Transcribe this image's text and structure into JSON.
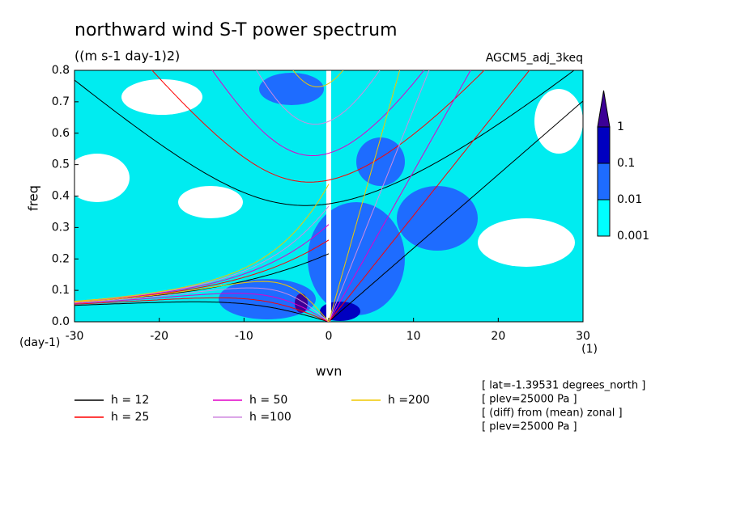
{
  "chart_data": {
    "type": "contour",
    "title": "northward wind S-T power spectrum",
    "subtitle": "((m s-1 day-1)2)",
    "label_right": "AGCM5_adj_3keq",
    "xlabel": "wvn",
    "ylabel": "freq",
    "x_unit": "(1)",
    "y_unit": "(day-1)",
    "xlim": [
      -30,
      30
    ],
    "ylim": [
      0,
      0.8
    ],
    "xticks": [
      -30,
      -20,
      -10,
      0,
      10,
      20,
      30
    ],
    "yticks": [
      {
        "value": 0,
        "label": "0.0"
      },
      0.1,
      0.2,
      0.3,
      0.4,
      0.5,
      0.6,
      0.7,
      0.8
    ],
    "colorbar": {
      "levels": [
        0.001,
        0.01,
        0.1,
        1
      ],
      "colors": [
        "#00ffff",
        "#1e6cff",
        "#0000c0",
        "#3c0096"
      ]
    },
    "series": [
      {
        "name": "h = 12",
        "h": 12,
        "color": "#000000"
      },
      {
        "name": "h = 25",
        "h": 25,
        "color": "#ff0000"
      },
      {
        "name": "h = 50",
        "h": 50,
        "color": "#e000c8"
      },
      {
        "name": "h =100",
        "h": 100,
        "color": "#d08ae0"
      },
      {
        "name": "h =200",
        "h": 200,
        "color": "#f0c800"
      }
    ],
    "annotations": [
      "[ lat=-1.39531 degrees_north ]",
      "[ plev=25000 Pa ]",
      "[ (diff) from (mean) zonal ]",
      "[ plev=25000 Pa ]"
    ]
  }
}
